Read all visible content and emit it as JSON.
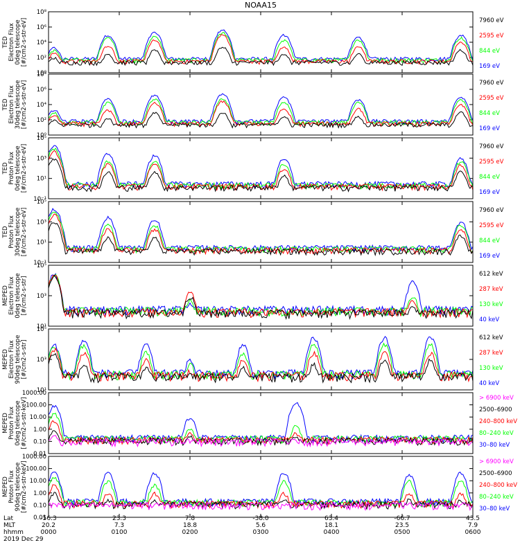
{
  "title": "NOAA15",
  "footer": {
    "row_labels": [
      "Lat",
      "MLT",
      "hhmm"
    ],
    "date": "2019 Dec 29",
    "lat": [
      "-56.3",
      "23.3",
      "7.8",
      "-38.0",
      "63.4",
      "-66.7",
      "43.5"
    ],
    "mlt": [
      "20.2",
      "7.3",
      "18.8",
      "5.6",
      "18.1",
      "23.5",
      "7.9"
    ],
    "hhmm": [
      "0000",
      "0100",
      "0200",
      "0300",
      "0400",
      "0500",
      "0600"
    ]
  },
  "colors": {
    "black": "#000000",
    "red": "#ff0000",
    "green": "#00ff00",
    "blue": "#0000ff",
    "magenta": "#ff00ff"
  },
  "chart_data": [
    {
      "type": "line",
      "scale": "log",
      "ylabel_lines": [
        "TED",
        "Electron Flux",
        "0deg telescope",
        "[#/cm2-s-str-eV]"
      ],
      "yticks": [
        "10⁰",
        "10²",
        "10⁴",
        "10⁶",
        "10⁸"
      ],
      "ylim": [
        1,
        100000000
      ],
      "series": [
        {
          "name": "7960 eV",
          "color": "#000000"
        },
        {
          "name": "2595 eV",
          "color": "#ff0000"
        },
        {
          "name": "844 eV",
          "color": "#00ff00"
        },
        {
          "name": "169 eV",
          "color": "#0000ff"
        }
      ],
      "peaks": [
        {
          "t": 0.08,
          "values": [
            100,
            400,
            900,
            2000
          ]
        },
        {
          "t": 0.84,
          "values": [
            300,
            4000,
            40000,
            100000
          ]
        },
        {
          "t": 1.5,
          "values": [
            1000,
            20000,
            60000,
            200000
          ]
        },
        {
          "t": 2.46,
          "values": [
            3000,
            100000,
            200000,
            500000
          ]
        },
        {
          "t": 3.33,
          "values": [
            300,
            3000,
            20000,
            100000
          ]
        },
        {
          "t": 4.38,
          "values": [
            300,
            3000,
            20000,
            50000
          ]
        },
        {
          "t": 5.83,
          "values": [
            1000,
            10000,
            40000,
            100000
          ]
        }
      ]
    },
    {
      "type": "line",
      "scale": "log",
      "ylabel_lines": [
        "TED",
        "Electron Flux",
        "30deg telescope",
        "[#/cm2-s-str-eV]"
      ],
      "yticks": [
        "10⁰",
        "10²",
        "10⁴",
        "10⁶",
        "10⁸"
      ],
      "ylim": [
        1,
        100000000
      ],
      "series": [
        {
          "name": "7960 eV",
          "color": "#000000"
        },
        {
          "name": "2595 eV",
          "color": "#ff0000"
        },
        {
          "name": "844 eV",
          "color": "#00ff00"
        },
        {
          "name": "169 eV",
          "color": "#0000ff"
        }
      ],
      "peaks": [
        {
          "t": 0.08,
          "values": [
            100,
            400,
            900,
            2000
          ]
        },
        {
          "t": 0.84,
          "values": [
            200,
            2000,
            20000,
            60000
          ]
        },
        {
          "t": 1.5,
          "values": [
            1000,
            20000,
            60000,
            200000
          ]
        },
        {
          "t": 2.46,
          "values": [
            1000,
            30000,
            60000,
            300000
          ]
        },
        {
          "t": 3.33,
          "values": [
            300,
            3000,
            20000,
            100000
          ]
        },
        {
          "t": 4.38,
          "values": [
            300,
            3000,
            20000,
            50000
          ]
        },
        {
          "t": 5.83,
          "values": [
            1000,
            10000,
            40000,
            100000
          ]
        }
      ]
    },
    {
      "type": "line",
      "scale": "log",
      "ylabel_lines": [
        "TED",
        "Proton Flux",
        "0deg telescope",
        "[#/cm2-s-str-eV]"
      ],
      "yticks": [
        "10⁻¹",
        "10¹",
        "10³",
        "10⁵"
      ],
      "ylim": [
        0.1,
        100000
      ],
      "series": [
        {
          "name": "7960 eV",
          "color": "#000000"
        },
        {
          "name": "2595 eV",
          "color": "#ff0000"
        },
        {
          "name": "844 eV",
          "color": "#00ff00"
        },
        {
          "name": "169 eV",
          "color": "#0000ff"
        }
      ],
      "peaks": [
        {
          "t": 0.08,
          "values": [
            1000,
            5000,
            10000,
            20000
          ]
        },
        {
          "t": 0.84,
          "values": [
            50,
            300,
            500,
            3000
          ]
        },
        {
          "t": 1.5,
          "values": [
            50,
            300,
            500,
            2000
          ]
        },
        {
          "t": 3.33,
          "values": [
            20,
            100,
            300,
            1000
          ]
        },
        {
          "t": 5.83,
          "values": [
            50,
            200,
            500,
            1000
          ]
        }
      ]
    },
    {
      "type": "line",
      "scale": "log",
      "ylabel_lines": [
        "TED",
        "Proton Flux",
        "30deg telescope",
        "[#/cm2-s-str-eV]"
      ],
      "yticks": [
        "10⁻¹",
        "10¹",
        "10³",
        "10⁵"
      ],
      "ylim": [
        0.1,
        100000
      ],
      "series": [
        {
          "name": "7960 eV",
          "color": "#000000"
        },
        {
          "name": "2595 eV",
          "color": "#ff0000"
        },
        {
          "name": "844 eV",
          "color": "#00ff00"
        },
        {
          "name": "169 eV",
          "color": "#0000ff"
        }
      ],
      "peaks": [
        {
          "t": 0.08,
          "values": [
            1000,
            5000,
            10000,
            20000
          ]
        },
        {
          "t": 0.84,
          "values": [
            30,
            200,
            500,
            3000
          ]
        },
        {
          "t": 1.5,
          "values": [
            30,
            200,
            500,
            2000
          ]
        },
        {
          "t": 5.83,
          "values": [
            50,
            200,
            500,
            1000
          ]
        }
      ]
    },
    {
      "type": "line",
      "scale": "log",
      "ylabel_lines": [
        "MEPED",
        "Electron Flux",
        "0deg telescope",
        "[#/cm2-s-str]"
      ],
      "yticks": [
        "10¹",
        "10³",
        "10⁵"
      ],
      "ylim": [
        10,
        100000
      ],
      "series": [
        {
          "name": "612 keV",
          "color": "#000000"
        },
        {
          "name": "287 keV",
          "color": "#ff0000"
        },
        {
          "name": "130 keV",
          "color": "#00ff00"
        },
        {
          "name": "40 keV",
          "color": "#0000ff"
        }
      ],
      "peaks": [
        {
          "t": 0.08,
          "values": [
            20000,
            25000,
            28000,
            30000
          ]
        },
        {
          "t": 2.0,
          "values": [
            1000,
            2000,
            500,
            300
          ]
        },
        {
          "t": 5.15,
          "values": [
            200,
            500,
            1000,
            10000
          ]
        }
      ]
    },
    {
      "type": "line",
      "scale": "log",
      "ylabel_lines": [
        "MEPED",
        "Electron Flux",
        "90deg telescope",
        "[#/cm2-s-str]"
      ],
      "yticks": [
        "10¹",
        "10³",
        "10⁵"
      ],
      "ylim": [
        10,
        100000
      ],
      "series": [
        {
          "name": "612 keV",
          "color": "#000000"
        },
        {
          "name": "287 keV",
          "color": "#ff0000"
        },
        {
          "name": "130 keV",
          "color": "#00ff00"
        },
        {
          "name": "40 keV",
          "color": "#0000ff"
        }
      ],
      "peaks": [
        {
          "t": 0.08,
          "values": [
            3000,
            5000,
            8000,
            10000
          ]
        },
        {
          "t": 0.5,
          "values": [
            500,
            3000,
            10000,
            20000
          ]
        },
        {
          "t": 1.38,
          "values": [
            300,
            1000,
            3000,
            10000
          ]
        },
        {
          "t": 2.0,
          "values": [
            100,
            200,
            500,
            1000
          ]
        },
        {
          "t": 2.75,
          "values": [
            300,
            1000,
            3000,
            10000
          ]
        },
        {
          "t": 3.75,
          "values": [
            500,
            3000,
            10000,
            30000
          ]
        },
        {
          "t": 4.75,
          "values": [
            1000,
            3000,
            10000,
            30000
          ]
        },
        {
          "t": 5.4,
          "values": [
            1000,
            3000,
            10000,
            30000
          ]
        }
      ]
    },
    {
      "type": "line",
      "scale": "log",
      "ylabel_lines": [
        "MEPED",
        "Proton Flux",
        "0deg telescope",
        "[#/cm2-s-str-keV]"
      ],
      "yticks": [
        "0.01",
        "0.10",
        "1.00",
        "10.00",
        "100.00",
        "1000.00"
      ],
      "ylim": [
        0.01,
        1000
      ],
      "series": [
        {
          "name": "> 6900 keV",
          "color": "#ff00ff"
        },
        {
          "name": "2500–6900",
          "color": "#000000"
        },
        {
          "name": "240–800 keV",
          "color": "#ff0000"
        },
        {
          "name": "80–240 keV",
          "color": "#00ff00"
        },
        {
          "name": "30–80 keV",
          "color": "#0000ff"
        }
      ],
      "peaks": [
        {
          "t": 0.08,
          "values": [
            0.3,
            1,
            5,
            20,
            100
          ]
        },
        {
          "t": 2.0,
          "values": [
            0.1,
            0.3,
            0.5,
            1,
            10
          ]
        },
        {
          "t": 3.5,
          "values": [
            0.1,
            0.3,
            0.5,
            2,
            200
          ]
        }
      ]
    },
    {
      "type": "line",
      "scale": "log",
      "ylabel_lines": [
        "MEPED",
        "Proton Flux",
        "90deg telescope",
        "[#/cm2-s-str-keV]"
      ],
      "yticks": [
        "0.01",
        "0.10",
        "1.00",
        "10.00",
        "100.00",
        "1000.00"
      ],
      "ylim": [
        0.01,
        1000
      ],
      "series": [
        {
          "name": "> 6900 keV",
          "color": "#ff00ff"
        },
        {
          "name": "2500–6900",
          "color": "#000000"
        },
        {
          "name": "240–800 keV",
          "color": "#ff0000"
        },
        {
          "name": "80–240 keV",
          "color": "#00ff00"
        },
        {
          "name": "30–80 keV",
          "color": "#0000ff"
        }
      ],
      "peaks": [
        {
          "t": 0.08,
          "values": [
            0.1,
            1,
            5,
            20,
            50
          ]
        },
        {
          "t": 0.84,
          "values": [
            0.1,
            0.3,
            1,
            10,
            50
          ]
        },
        {
          "t": 1.5,
          "values": [
            0.1,
            0.3,
            1,
            5,
            50
          ]
        },
        {
          "t": 3.33,
          "values": [
            0.1,
            0.3,
            1,
            10,
            50
          ]
        },
        {
          "t": 5.1,
          "values": [
            0.1,
            0.3,
            1,
            10,
            30
          ]
        },
        {
          "t": 5.83,
          "values": [
            0.1,
            0.3,
            1,
            10,
            50
          ]
        }
      ]
    }
  ]
}
